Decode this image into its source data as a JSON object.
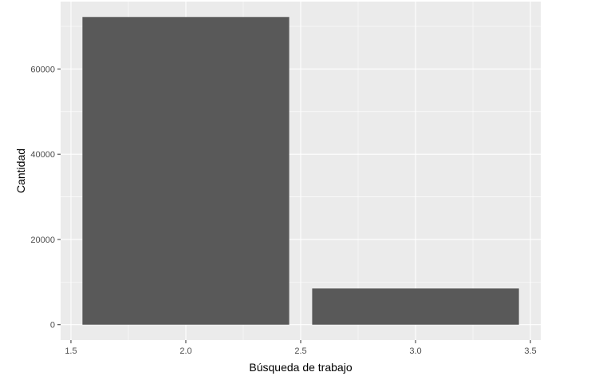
{
  "chart_data": {
    "type": "bar",
    "xlabel": "Búsqueda de trabajo",
    "ylabel": "Cantidad",
    "xlim": [
      1.5,
      3.5
    ],
    "ylim": [
      0,
      75000
    ],
    "x_ticks": [
      "1.5",
      "2.0",
      "2.5",
      "3.0",
      "3.5"
    ],
    "y_ticks": [
      "0",
      "20000",
      "40000",
      "60000"
    ],
    "bars": [
      {
        "x": 2.0,
        "width": 0.9,
        "value": 72200
      },
      {
        "x": 3.0,
        "width": 0.9,
        "value": 8500
      }
    ],
    "grid": true,
    "legend": "none",
    "colors": {
      "panel": "#EBEBEB",
      "grid": "#FFFFFF",
      "bar": "#595959",
      "tick_text": "#4D4D4D",
      "tick_mark": "#333333"
    }
  }
}
